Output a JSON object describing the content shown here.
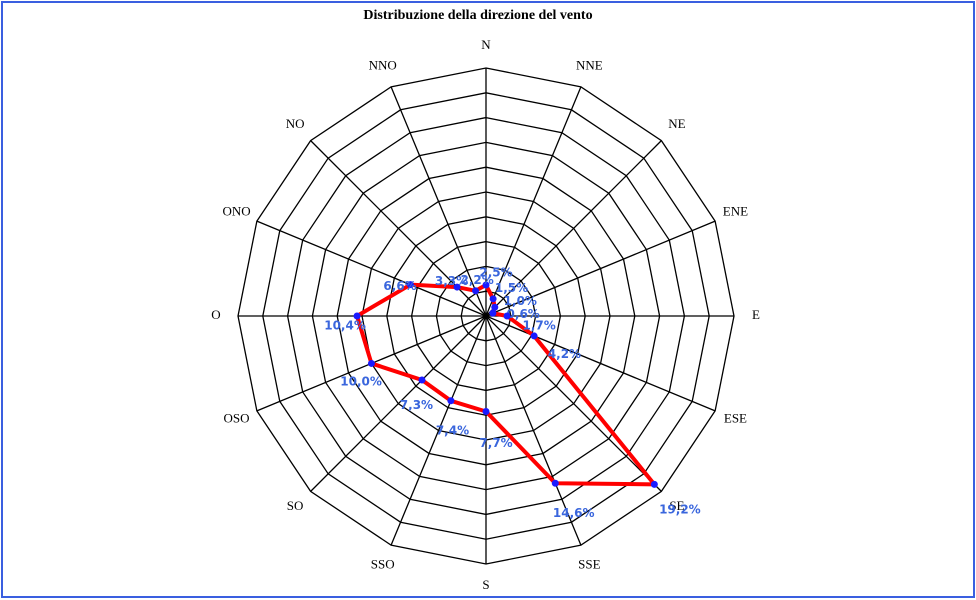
{
  "chart_data": {
    "type": "radar",
    "title": "Distribuzione della direzione del vento",
    "categories": [
      "N",
      "NNE",
      "NE",
      "ENE",
      "E",
      "ESE",
      "SE",
      "SSE",
      "S",
      "SSO",
      "SO",
      "OSO",
      "O",
      "ONO",
      "NO",
      "NNO"
    ],
    "values": [
      2.5,
      1.5,
      1.0,
      0.6,
      1.7,
      4.2,
      19.2,
      14.6,
      7.7,
      7.4,
      7.3,
      10.0,
      10.4,
      6.6,
      3.3,
      2.2
    ],
    "value_labels": [
      "2,5%",
      "1,5%",
      "1,0%",
      "0,6%",
      "1,7%",
      "4,2%",
      "19,2%",
      "14,6%",
      "7,7%",
      "7,4%",
      "7,3%",
      "10,0%",
      "10,4%",
      "6,6%",
      "3,3%",
      "2,2%"
    ],
    "line_color": "#ff0000",
    "marker_color": "#1a1aff",
    "label_color": "#3a66dd",
    "rlim": [
      0,
      20
    ],
    "rticks": [
      2,
      4,
      6,
      8,
      10,
      12,
      14,
      16,
      18,
      20
    ]
  }
}
